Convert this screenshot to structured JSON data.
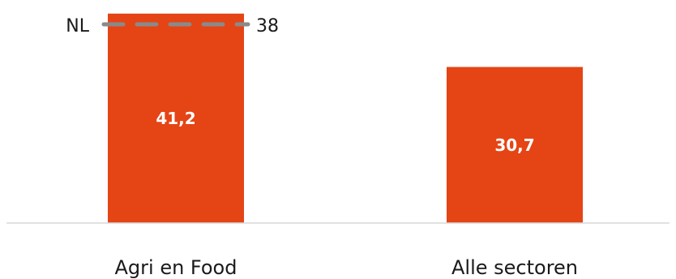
{
  "chart_data": {
    "type": "bar",
    "categories": [
      "Agri en Food",
      "Alle sectoren"
    ],
    "values": [
      41.2,
      30.7
    ],
    "value_labels": [
      "41,2",
      "30,7"
    ],
    "ylim": [
      0,
      42.6
    ],
    "grid": false,
    "colors": {
      "bar": "#e54415",
      "reference_line": "#8a8a8a",
      "axis": "#d9d9d9"
    },
    "reference_line": {
      "label": "NL",
      "value": 38,
      "value_label": "38",
      "style": "dashed"
    }
  }
}
